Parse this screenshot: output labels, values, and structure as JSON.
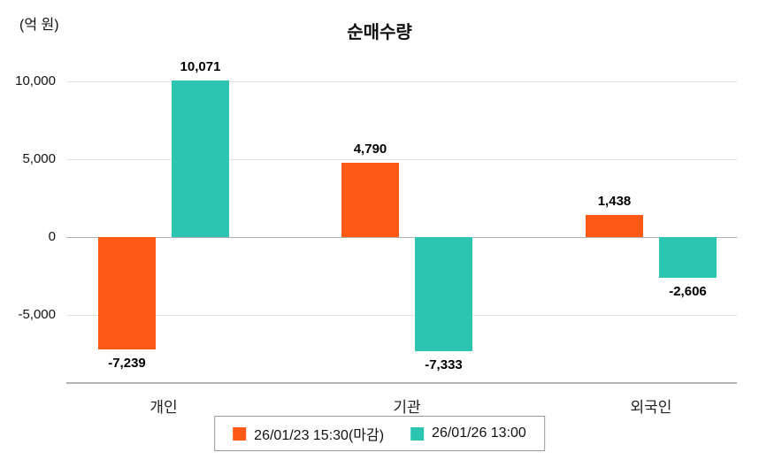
{
  "chart_data": {
    "type": "bar",
    "title": "순매수량",
    "unit_label": "(억 원)",
    "categories": [
      "개인",
      "기관",
      "외국인"
    ],
    "series": [
      {
        "name": "26/01/23 15:30(마감)",
        "color": "#ff5a15",
        "values": [
          -7239,
          4790,
          1438
        ],
        "labels": [
          "-7,239",
          "4,790",
          "1,438"
        ]
      },
      {
        "name": "26/01/26 13:00",
        "color": "#2cc5b2",
        "values": [
          10071,
          -7333,
          -2606
        ],
        "labels": [
          "10,071",
          "-7,333",
          "-2,606"
        ]
      }
    ],
    "yticks": [
      {
        "value": 10000,
        "label": "10,000"
      },
      {
        "value": 5000,
        "label": "5,000"
      },
      {
        "value": 0,
        "label": "0"
      },
      {
        "value": -5000,
        "label": "-5,000"
      }
    ],
    "ylim": [
      -9300,
      11000
    ],
    "grid": true,
    "legend_position": "bottom"
  }
}
